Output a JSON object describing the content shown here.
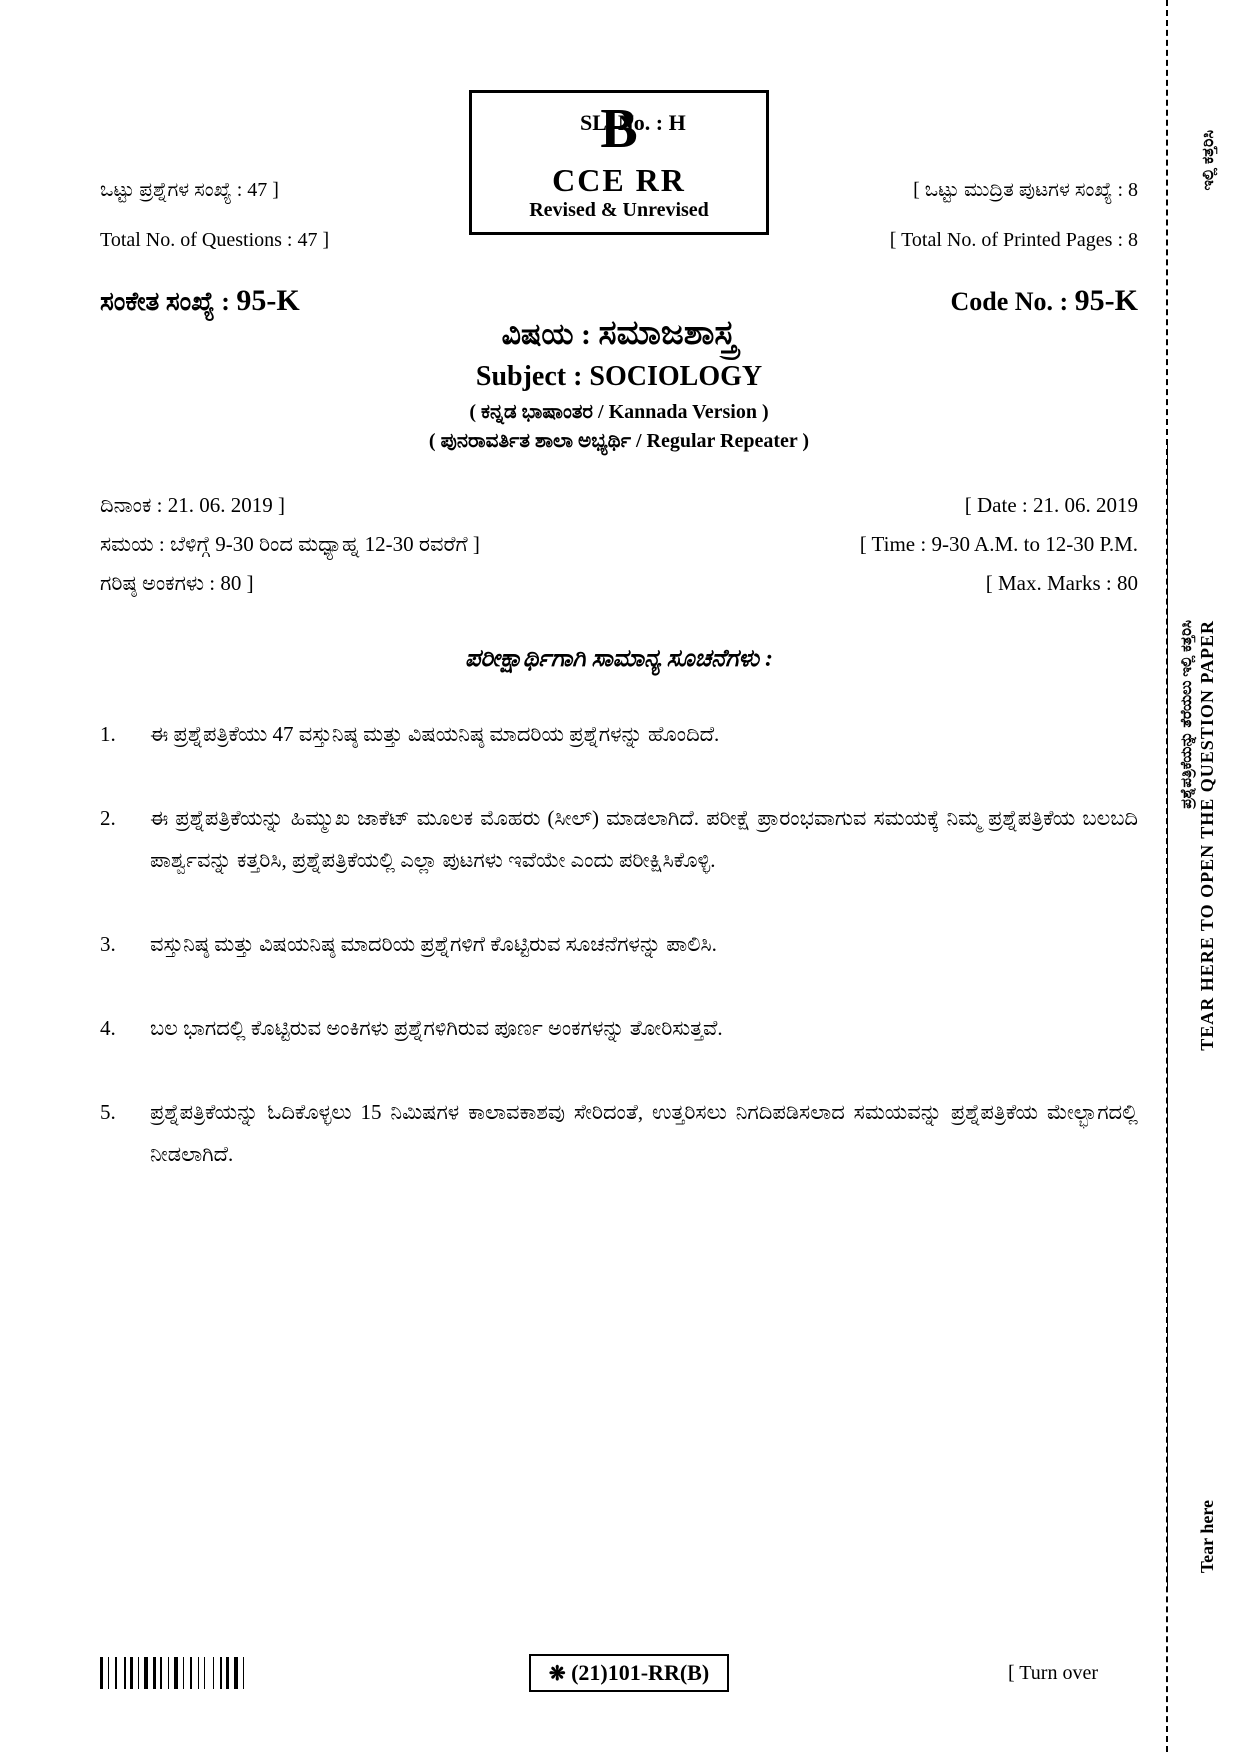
{
  "header": {
    "letter": "B",
    "exam_type": "CCE RR",
    "revised": "Revised & Unrevised",
    "sl_no": "SL. No. : H"
  },
  "meta": {
    "left": {
      "questions_kn": "ಒಟ್ಟು ಪ್ರಶ್ನೆಗಳ ಸಂಖ್ಯೆ : 47 ]",
      "questions_en": "Total No. of Questions : 47 ]",
      "code_kn_label": "ಸಂಕೇತ ಸಂಖ್ಯೆ :",
      "code_value": "95-K"
    },
    "right": {
      "pages_kn": "[ ಒಟ್ಟು ಮುದ್ರಿತ ಪುಟಗಳ ಸಂಖ್ಯೆ : 8",
      "pages_en": "[ Total No. of Printed Pages : 8",
      "code_en_label": "Code No. :",
      "code_value": "95-K"
    }
  },
  "subject": {
    "label_kn": "ವಿಷಯ :",
    "name_kn": "ಸಮಾಜಶಾಸ್ತ್ರ",
    "label_en": "Subject :",
    "name_en": "SOCIOLOGY",
    "version": "( ಕನ್ನಡ ಭಾಷಾಂತರ / Kannada Version )",
    "repeater": "( ಪುನರಾವರ್ತಿತ ಶಾಲಾ ಅಭ್ಯರ್ಥಿ / Regular Repeater )"
  },
  "datetime": {
    "date_kn": "ದಿನಾಂಕ : 21. 06. 2019 ]",
    "date_en": "[ Date : 21. 06. 2019",
    "time_kn": "ಸಮಯ : ಬೆಳಿಗ್ಗೆ 9-30 ರಿಂದ ಮಧ್ಯಾಹ್ನ 12-30 ರವರೆಗೆ ]",
    "time_en": "[ Time : 9-30 A.M. to 12-30 P.M.",
    "marks_kn": "ಗರಿಷ್ಠ ಅಂಕಗಳು : 80 ]",
    "marks_en": "[ Max. Marks : 80"
  },
  "instructions": {
    "title": "ಪರೀಕ್ಷಾರ್ಥಿಗಾಗಿ ಸಾಮಾನ್ಯ ಸೂಚನೆಗಳು :",
    "items": [
      "ಈ ಪ್ರಶ್ನೆಪತ್ರಿಕೆಯು 47 ವಸ್ತುನಿಷ್ಠ ಮತ್ತು ವಿಷಯನಿಷ್ಠ ಮಾದರಿಯ ಪ್ರಶ್ನೆಗಳನ್ನು ಹೊಂದಿದೆ.",
      "ಈ ಪ್ರಶ್ನೆಪತ್ರಿಕೆಯನ್ನು ಹಿಮ್ಮುಖ ಜಾಕೆಟ್ ಮೂಲಕ ಮೊಹರು (ಸೀಲ್) ಮಾಡಲಾಗಿದೆ. ಪರೀಕ್ಷೆ ಪ್ರಾರಂಭವಾಗುವ ಸಮಯಕ್ಕೆ ನಿಮ್ಮ ಪ್ರಶ್ನೆಪತ್ರಿಕೆಯ ಬಲಬದಿ ಪಾರ್ಶ್ವವನ್ನು ಕತ್ತರಿಸಿ, ಪ್ರಶ್ನೆಪತ್ರಿಕೆಯಲ್ಲಿ ಎಲ್ಲಾ ಪುಟಗಳು ಇವೆಯೇ ಎಂದು ಪರೀಕ್ಷಿಸಿಕೊಳ್ಳಿ.",
      "ವಸ್ತುನಿಷ್ಠ ಮತ್ತು ವಿಷಯನಿಷ್ಠ ಮಾದರಿಯ ಪ್ರಶ್ನೆಗಳಿಗೆ ಕೊಟ್ಟಿರುವ ಸೂಚನೆಗಳನ್ನು ಪಾಲಿಸಿ.",
      "ಬಲ ಭಾಗದಲ್ಲಿ ಕೊಟ್ಟಿರುವ ಅಂಕಿಗಳು ಪ್ರಶ್ನೆಗಳಿಗಿರುವ ಪೂರ್ಣ ಅಂಕಗಳನ್ನು ತೋರಿಸುತ್ತವೆ.",
      "ಪ್ರಶ್ನೆಪತ್ರಿಕೆಯನ್ನು ಓದಿಕೊಳ್ಳಲು 15 ನಿಮಿಷಗಳ ಕಾಲಾವಕಾಶವು ಸೇರಿದಂತೆ, ಉತ್ತರಿಸಲು ನಿಗದಿಪಡಿಸಲಾದ ಸಮಯವನ್ನು ಪ್ರಶ್ನೆಪತ್ರಿಕೆಯ ಮೇಲ್ಭಾಗದಲ್ಲಿ ನೀಡಲಾಗಿದೆ."
    ]
  },
  "footer": {
    "code": "(21)101-RR(B)",
    "gear": "❋",
    "turn_over": "[ Turn over"
  },
  "side": {
    "top_kn": "ಇಲ್ಲಿ ಕತ್ತರಿಸಿ",
    "mid_en": "TEAR HERE TO OPEN THE QUESTION PAPER",
    "mid_kn": "ಪ್ರಶ್ನೆಪತ್ರಿಕೆಯನ್ನು ತೆರೆಯಲು ಇಲ್ಲಿ ಕತ್ತರಿಸಿ",
    "bottom_en": "Tear here"
  },
  "barcode_widths": [
    2,
    1,
    1,
    2,
    1,
    3,
    1,
    1,
    2,
    1,
    1,
    1,
    3,
    1,
    2,
    1,
    1,
    2,
    1,
    1,
    3,
    1,
    1,
    2,
    1,
    2,
    1,
    1,
    1,
    3,
    1,
    2,
    1,
    1,
    2,
    1,
    3,
    1,
    1,
    2
  ]
}
